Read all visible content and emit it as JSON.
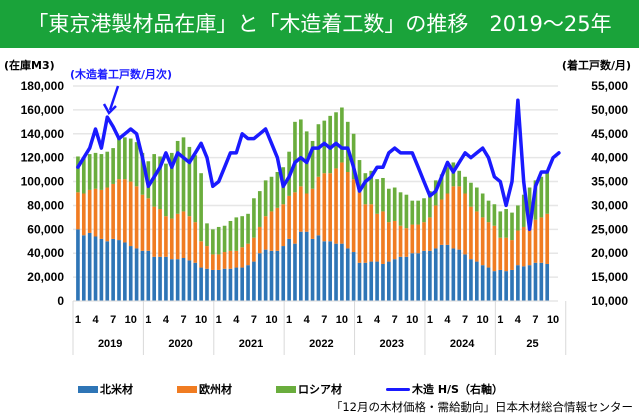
{
  "title": "「東京港製材品在庫」と「木造着工数」の推移　2019～25年",
  "left_axis_label": "(在庫M3)",
  "right_axis_label": "(着工戸数/月)",
  "annotation": "(木造着工戸数/月次)",
  "source": "「12月の木材価格・需給動向」日本木材総合情報センター",
  "chart_data": {
    "type": "bar",
    "stacked": true,
    "title": "「東京港製材品在庫」と「木造着工数」の推移　2019～25年",
    "ylabel": "(在庫M3)",
    "y2label": "(着工戸数/月)",
    "ylim": [
      0,
      180000
    ],
    "y2lim": [
      10000,
      55000
    ],
    "yticks": [
      "0",
      "20,000",
      "40,000",
      "60,000",
      "80,000",
      "100,000",
      "120,000",
      "140,000",
      "160,000",
      "180,000"
    ],
    "y2ticks": [
      "10,000",
      "15,000",
      "20,000",
      "25,000",
      "30,000",
      "35,000",
      "40,000",
      "45,000",
      "50,000",
      "55,000"
    ],
    "month_ticks": [
      "1",
      "4",
      "7",
      "10"
    ],
    "years": [
      "2019",
      "2020",
      "2021",
      "2022",
      "2023",
      "2024",
      "25"
    ],
    "grid": true,
    "legend_position": "bottom",
    "colors": {
      "north_america": "#2e75b6",
      "europe": "#f07c22",
      "russia": "#6aad3d",
      "housing": "#1a1aff"
    },
    "series": [
      {
        "name": "北米材",
        "values": [
          60000,
          55000,
          57000,
          54000,
          52000,
          50000,
          52000,
          51000,
          49000,
          46000,
          44000,
          42000,
          42000,
          37000,
          37000,
          37000,
          35000,
          35000,
          36000,
          34000,
          32000,
          28000,
          27000,
          26000,
          26000,
          27000,
          27000,
          28000,
          28000,
          30000,
          33000,
          40000,
          43000,
          42000,
          42000,
          46000,
          52000,
          48000,
          58000,
          58000,
          52000,
          55000,
          50000,
          50000,
          48000,
          48000,
          44000,
          41000,
          32000,
          32000,
          33000,
          33000,
          31000,
          33000,
          35000,
          37000,
          37000,
          40000,
          40000,
          42000,
          42000,
          44000,
          47000,
          47000,
          44000,
          43000,
          39000,
          35000,
          33000,
          30000,
          28000,
          25000,
          26000,
          25000,
          26000,
          30000,
          29000,
          30000,
          32000,
          32000,
          31000
        ]
      },
      {
        "name": "欧州材",
        "values": [
          31000,
          35000,
          36000,
          40000,
          41000,
          45000,
          46000,
          51000,
          53000,
          54000,
          52000,
          47000,
          44000,
          42000,
          40000,
          34000,
          34000,
          38000,
          39000,
          37000,
          34000,
          22000,
          19000,
          13000,
          13000,
          14000,
          15000,
          14000,
          17000,
          18000,
          20000,
          22000,
          28000,
          33000,
          36000,
          35000,
          36000,
          43000,
          38000,
          32000,
          42000,
          49000,
          57000,
          57000,
          63000,
          68000,
          64000,
          61000,
          59000,
          49000,
          48000,
          40000,
          44000,
          33000,
          32000,
          26000,
          24000,
          24000,
          24000,
          24000,
          28000,
          36000,
          38000,
          43000,
          52000,
          53000,
          51000,
          44000,
          42000,
          40000,
          38000,
          38000,
          27000,
          28000,
          25000,
          29000,
          33000,
          35000,
          36000,
          38000,
          42000
        ]
      },
      {
        "name": "ロシア材",
        "values": [
          30000,
          30000,
          30000,
          30000,
          30000,
          30000,
          30000,
          36000,
          35000,
          36000,
          37000,
          35000,
          31000,
          44000,
          44000,
          44000,
          55000,
          61000,
          62000,
          58000,
          56000,
          57000,
          19000,
          21000,
          23000,
          22000,
          25000,
          28000,
          26000,
          25000,
          33000,
          30000,
          30000,
          29000,
          30000,
          31000,
          37000,
          59000,
          56000,
          52000,
          40000,
          44000,
          44000,
          48000,
          47000,
          46000,
          42000,
          38000,
          27000,
          26000,
          28000,
          29000,
          28000,
          28000,
          28000,
          28000,
          28000,
          20000,
          20000,
          20000,
          22000,
          21000,
          21000,
          22000,
          20000,
          13000,
          14000,
          20000,
          20000,
          20000,
          18000,
          18000,
          22000,
          24000,
          23000,
          21000,
          27000,
          30000,
          33000,
          34000,
          35000
        ]
      },
      {
        "name": "木造 H/S (右軸)",
        "axis": "right",
        "type": "line",
        "values": [
          38000,
          40000,
          42000,
          46000,
          42000,
          48500,
          46500,
          44000,
          45000,
          46000,
          45000,
          40000,
          34000,
          36000,
          38000,
          41000,
          38000,
          41000,
          40000,
          39000,
          41000,
          43000,
          40000,
          34000,
          35000,
          38000,
          41000,
          41000,
          45000,
          44000,
          44000,
          45000,
          46000,
          43000,
          40000,
          34000,
          36000,
          39000,
          40000,
          39000,
          42000,
          42000,
          43000,
          42000,
          43000,
          42000,
          42000,
          38000,
          33000,
          35000,
          36000,
          38000,
          38000,
          41000,
          42000,
          41000,
          41000,
          41000,
          38000,
          35000,
          32000,
          33000,
          36000,
          39000,
          37000,
          39000,
          41000,
          40000,
          41000,
          42000,
          40000,
          36000,
          35000,
          30000,
          35000,
          52000,
          35000,
          25000,
          34000,
          37000,
          37000,
          40000,
          41000
        ]
      }
    ]
  },
  "legend": [
    {
      "label": "北米材"
    },
    {
      "label": "欧州材"
    },
    {
      "label": "ロシア材"
    },
    {
      "label": "木造 H/S（右軸）"
    }
  ]
}
